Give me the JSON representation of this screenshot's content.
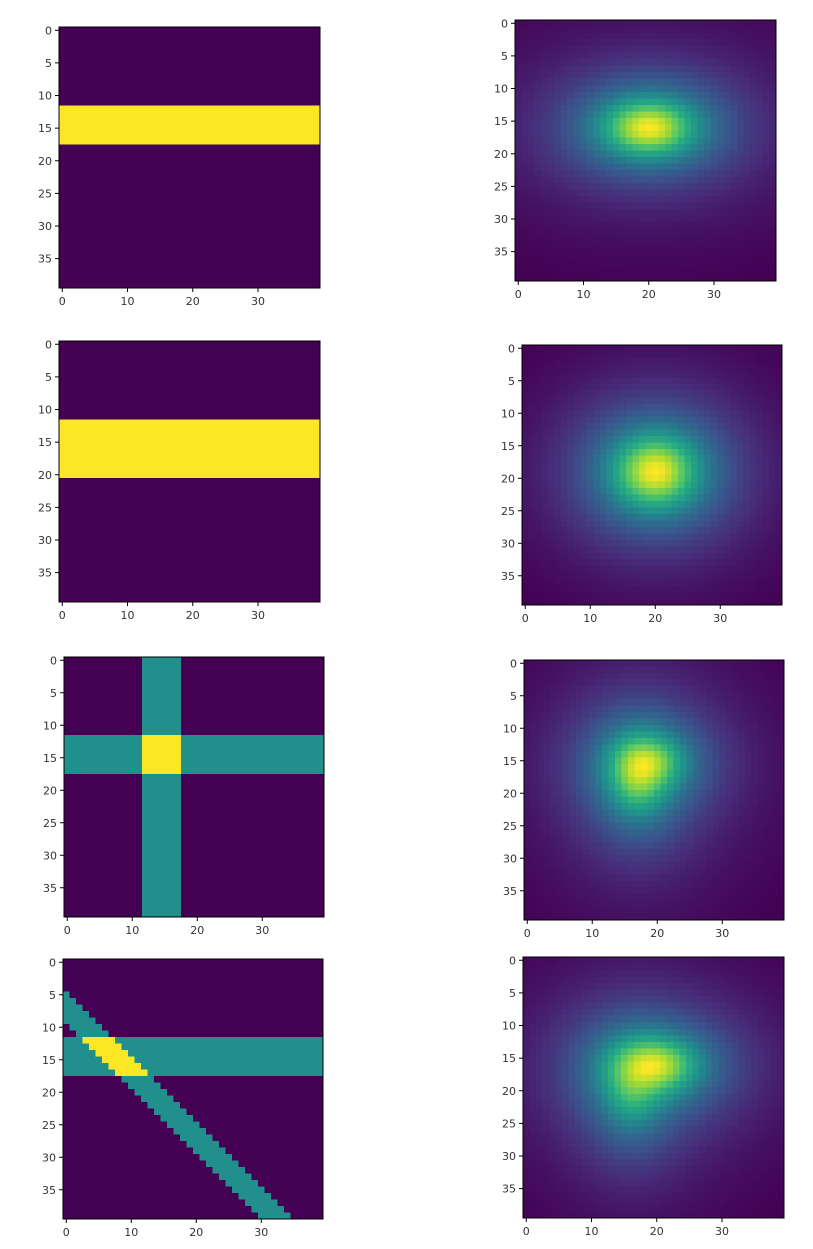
{
  "chart_data": [
    {
      "type": "heatmap",
      "description_of_content": "binary horizontal band",
      "grid_size": [
        40,
        40
      ],
      "colormap": "viridis",
      "shapes": [
        {
          "kind": "hband",
          "rows": [
            12,
            17
          ],
          "value": 1
        }
      ],
      "xticks": [
        "0",
        "10",
        "20",
        "30"
      ],
      "yticks": [
        "0",
        "5",
        "10",
        "15",
        "20",
        "25",
        "30",
        "35"
      ]
    },
    {
      "type": "heatmap",
      "description_of_content": "smoothed blob",
      "grid_size": [
        40,
        40
      ],
      "colormap": "viridis",
      "blobs": [
        {
          "center": [
            20,
            16
          ],
          "spread": [
            3.2,
            2.0
          ],
          "weight": 1
        }
      ],
      "xticks": [
        "0",
        "10",
        "20",
        "30"
      ],
      "yticks": [
        "0",
        "5",
        "10",
        "15",
        "20",
        "25",
        "30",
        "35"
      ]
    },
    {
      "type": "heatmap",
      "description_of_content": "binary horizontal band (wider)",
      "grid_size": [
        40,
        40
      ],
      "colormap": "viridis",
      "shapes": [
        {
          "kind": "hband",
          "rows": [
            12,
            20
          ],
          "value": 1
        }
      ],
      "xticks": [
        "0",
        "10",
        "20",
        "30"
      ],
      "yticks": [
        "0",
        "5",
        "10",
        "15",
        "20",
        "25",
        "30",
        "35"
      ]
    },
    {
      "type": "heatmap",
      "description_of_content": "smoothed blob",
      "grid_size": [
        40,
        40
      ],
      "colormap": "viridis",
      "blobs": [
        {
          "center": [
            20,
            19
          ],
          "spread": [
            3.0,
            2.6
          ],
          "weight": 1
        }
      ],
      "xticks": [
        "0",
        "10",
        "20",
        "30"
      ],
      "yticks": [
        "0",
        "5",
        "10",
        "15",
        "20",
        "25",
        "30",
        "35"
      ]
    },
    {
      "type": "heatmap",
      "description_of_content": "cross of horizontal and vertical bands",
      "grid_size": [
        40,
        40
      ],
      "colormap": "viridis",
      "shapes": [
        {
          "kind": "hband",
          "rows": [
            12,
            17
          ],
          "value": 0.5
        },
        {
          "kind": "vband",
          "cols": [
            12,
            17
          ],
          "value": 0.5
        }
      ],
      "xticks": [
        "0",
        "10",
        "20",
        "30"
      ],
      "yticks": [
        "0",
        "5",
        "10",
        "15",
        "20",
        "25",
        "30",
        "35"
      ]
    },
    {
      "type": "heatmap",
      "description_of_content": "smoothed L-shaped blob",
      "grid_size": [
        40,
        40
      ],
      "colormap": "viridis",
      "blobs": [
        {
          "center": [
            17,
            18
          ],
          "spread": [
            2.2,
            3.0
          ],
          "weight": 0.9
        },
        {
          "center": [
            19,
            15
          ],
          "spread": [
            2.6,
            1.8
          ],
          "weight": 0.75
        }
      ],
      "xticks": [
        "0",
        "10",
        "20",
        "30"
      ],
      "yticks": [
        "0",
        "5",
        "10",
        "15",
        "20",
        "25",
        "30",
        "35"
      ]
    },
    {
      "type": "heatmap",
      "description_of_content": "horizontal band crossed by diagonal band",
      "grid_size": [
        40,
        40
      ],
      "colormap": "viridis",
      "shapes": [
        {
          "kind": "hband",
          "rows": [
            12,
            17
          ],
          "value": 0.5
        },
        {
          "kind": "diagonal",
          "start_row": 5,
          "slope": 1,
          "width": 5,
          "value": 0.5
        }
      ],
      "xticks": [
        "0",
        "10",
        "20",
        "30"
      ],
      "yticks": [
        "0",
        "5",
        "10",
        "15",
        "20",
        "25",
        "30",
        "35"
      ]
    },
    {
      "type": "heatmap",
      "description_of_content": "smoothed blob with faint diagonal tail",
      "grid_size": [
        40,
        40
      ],
      "colormap": "viridis",
      "blobs": [
        {
          "center": [
            20,
            16
          ],
          "spread": [
            3.0,
            1.9
          ],
          "weight": 0.95
        },
        {
          "center": [
            16,
            21
          ],
          "spread": [
            2.2,
            3.2
          ],
          "weight": 0.5
        }
      ],
      "xticks": [
        "0",
        "10",
        "20",
        "30"
      ],
      "yticks": [
        "0",
        "5",
        "10",
        "15",
        "20",
        "25",
        "30",
        "35"
      ]
    }
  ]
}
